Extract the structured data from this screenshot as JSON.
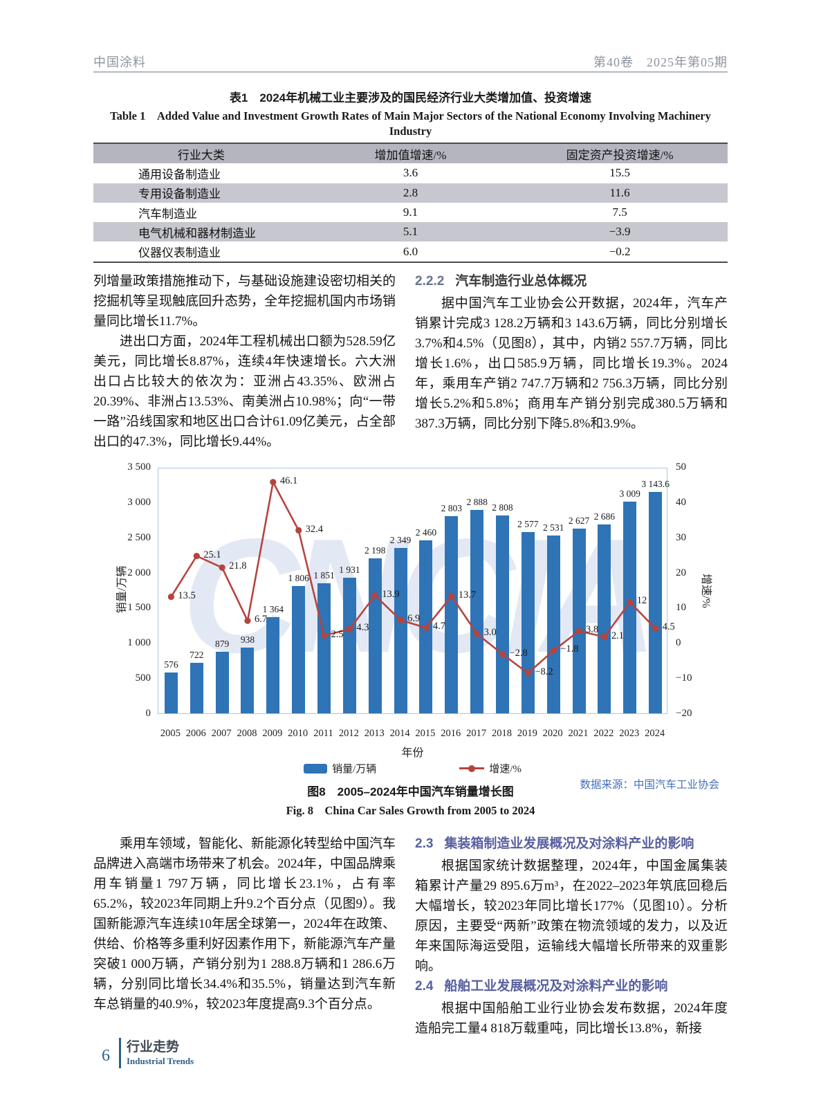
{
  "page_header": {
    "journal": "中国涂料",
    "issue": "第40卷　2025年第05期"
  },
  "table1": {
    "title_zh": "表1　2024年机械工业主要涉及的国民经济行业大类增加值、投资增速",
    "title_en_line1": "Table 1　Added Value and Investment Growth Rates of Main Major Sectors of the National Economy Involving Machinery",
    "title_en_line2": "Industry",
    "headers": [
      "行业大类",
      "增加值增速/%",
      "固定资产投资增速/%"
    ],
    "rows": [
      [
        "通用设备制造业",
        "3.6",
        "15.5"
      ],
      [
        "专用设备制造业",
        "2.8",
        "11.6"
      ],
      [
        "汽车制造业",
        "9.1",
        "7.5"
      ],
      [
        "电气机械和器材制造业",
        "5.1",
        "−3.9"
      ],
      [
        "仪器仪表制造业",
        "6.0",
        "−0.2"
      ]
    ]
  },
  "col_left_1": {
    "para1": "列增量政策措施推动下，与基础设施建设密切相关的挖掘机等呈现触底回升态势，全年挖掘机国内市场销量同比增长11.7%。",
    "para2": "进出口方面，2024年工程机械出口额为528.59亿美元，同比增长8.87%，连续4年快速增长。六大洲出口占比较大的依次为：亚洲占43.35%、欧洲占20.39%、非洲占13.53%、南美洲占10.98%；向“一带一路”沿线国家和地区出口合计61.09亿美元，占全部出口的47.3%，同比增长9.44%。"
  },
  "section_222": {
    "number": "2.2.2",
    "title": "汽车制造行业总体概况",
    "para": "据中国汽车工业协会公开数据，2024年，汽车产销累计完成3 128.2万辆和3 143.6万辆，同比分别增长3.7%和4.5%（见图8），其中，内销2 557.7万辆，同比增长1.6%，出口585.9万辆，同比增长19.3%。2024年，乘用车产销2 747.7万辆和2 756.3万辆，同比分别增长5.2%和5.8%；商用车产销分别完成380.5万辆和387.3万辆，同比分别下降5.8%和3.9%。"
  },
  "chart_data": {
    "type": "bar+line",
    "title": "图8　2005–2024年中国汽车销量增长图",
    "categories": [
      "2005",
      "2006",
      "2007",
      "2008",
      "2009",
      "2010",
      "2011",
      "2012",
      "2013",
      "2014",
      "2015",
      "2016",
      "2017",
      "2018",
      "2019",
      "2020",
      "2021",
      "2022",
      "2023",
      "2024"
    ],
    "series": [
      {
        "name": "销量/万辆",
        "type": "bar",
        "axis": "left",
        "color": "#2e74b6",
        "values": [
          576,
          722,
          879,
          938,
          1364,
          1806,
          1851,
          1931,
          2198,
          2349,
          2460,
          2803,
          2888,
          2808,
          2577,
          2531,
          2627,
          2686,
          3009,
          3143.6
        ],
        "labels": [
          "576",
          "722",
          "879",
          "938",
          "1 364",
          "1 806",
          "1 851",
          "1 931",
          "2 198",
          "2 349",
          "2 460",
          "2 803",
          "2 888",
          "2 808",
          "2 577",
          "2 531",
          "2 627",
          "2 686",
          "3 009",
          "3 143.6"
        ]
      },
      {
        "name": "增速/%",
        "type": "line",
        "axis": "right",
        "color": "#b5443e",
        "values": [
          13.5,
          25.1,
          21.8,
          6.7,
          46.1,
          32.4,
          2.5,
          4.3,
          13.9,
          6.9,
          4.7,
          13.7,
          3.0,
          -2.8,
          -8.2,
          -1.8,
          3.8,
          2.1,
          12,
          4.5
        ],
        "labels": [
          "13.5",
          "25.1",
          "21.8",
          "6.7",
          "46.1",
          "32.4",
          "2.5",
          "4.3",
          "13.9",
          "6.9",
          "4.7",
          "13.7",
          "3.0",
          "−2.8",
          "−8.2",
          "−1.8",
          "3.8",
          "2.1",
          "12",
          "4.5"
        ]
      }
    ],
    "left_axis": {
      "label": "销量/万辆",
      "min": 0,
      "max": 3500,
      "step": 500,
      "ticks": [
        "3 500",
        "3 000",
        "2 500",
        "2 000",
        "1 500",
        "1 000",
        "500",
        "0"
      ]
    },
    "right_axis": {
      "label": "增速/%",
      "min": -20,
      "max": 50,
      "step": 10,
      "ticks": [
        "50",
        "40",
        "30",
        "20",
        "10",
        "0",
        "−10",
        "−20"
      ]
    },
    "xlabel": "年份",
    "legend": [
      "销量/万辆",
      "增速/%"
    ],
    "grid": false,
    "legend_position": "bottom"
  },
  "figure8": {
    "source": "数据来源：中国汽车工业协会",
    "caption_zh": "图8　2005–2024年中国汽车销量增长图",
    "caption_en": "Fig. 8　China Car Sales Growth from 2005 to 2024"
  },
  "col_left_2": {
    "para": "乘用车领域，智能化、新能源化转型给中国汽车品牌进入高端市场带来了机会。2024年，中国品牌乘用车销量1 797万辆，同比增长23.1%，占有率65.2%，较2023年同期上升9.2个百分点（见图9）。我国新能源汽车连续10年居全球第一，2024年在政策、供给、价格等多重利好因素作用下，新能源汽车产量突破1 000万辆，产销分别为1 288.8万辆和1 286.6万辆，分别同比增长34.4%和35.5%，销量达到汽车新车总销量的40.9%，较2023年度提高9.3个百分点。"
  },
  "section_23": {
    "number": "2.3",
    "title": "集装箱制造业发展概况及对涂料产业的影响",
    "para": "根据国家统计数据整理，2024年，中国金属集装箱累计产量29 895.6万m³，在2022–2023年筑底回稳后大幅增长，较2023年同比增长177%（见图10）。分析原因，主要受“两新”政策在物流领域的发力，以及近年来国际海运受阻，运输线大幅增长所带来的双重影响。"
  },
  "section_24": {
    "number": "2.4",
    "title": "船舶工业发展概况及对涂料产业的影响",
    "para": "根据中国船舶工业行业协会发布数据，2024年度造船完工量4 818万载重吨，同比增长13.8%，新接"
  },
  "watermark": "CNCIA",
  "footer": {
    "page_number": "6",
    "section_zh": "行业走势",
    "section_en": "Industrial Trends"
  }
}
